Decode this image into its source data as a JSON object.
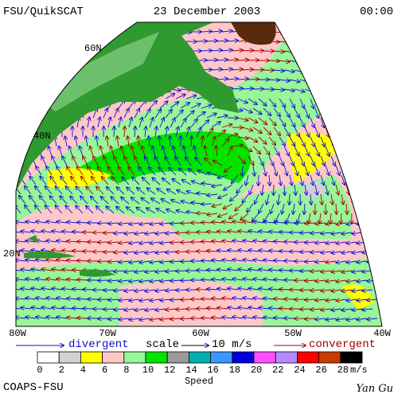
{
  "header": {
    "left": "FSU/QuikSCAT",
    "center": "23 December 2003",
    "right": "00:00"
  },
  "lat_labels": [
    "60N",
    "40N",
    "20N"
  ],
  "lon_labels": [
    "80W",
    "70W",
    "60W",
    "50W",
    "40W"
  ],
  "legend": {
    "divergent": "divergent",
    "scale": "scale",
    "scale_value": "10 m/s",
    "convergent": "convergent"
  },
  "colorbar": {
    "ticks": [
      "0",
      "2",
      "4",
      "6",
      "8",
      "10",
      "12",
      "14",
      "16",
      "18",
      "20",
      "22",
      "24",
      "26",
      "28"
    ],
    "unit": "m/s",
    "label": "Speed",
    "colors": [
      "#ffffff",
      "#d2d2d2",
      "#ffff00",
      "#ffc8c8",
      "#98f598",
      "#00e400",
      "#9a9a9a",
      "#00b0b0",
      "#3c96ff",
      "#0000d8",
      "#ff50ff",
      "#b48cff",
      "#ff0000",
      "#c83c00",
      "#000000"
    ]
  },
  "footer": {
    "left": "COAPS-FSU",
    "right": "Yan Gu"
  }
}
